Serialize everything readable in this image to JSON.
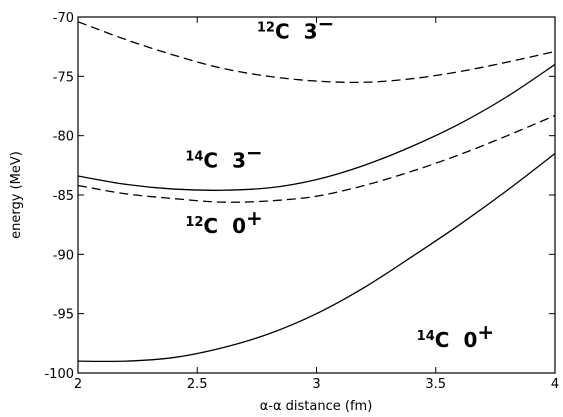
{
  "chart_data": {
    "type": "line",
    "xlabel": "α-α distance (fm)",
    "ylabel": "energy (MeV)",
    "xlim": [
      2,
      4
    ],
    "ylim": [
      -100,
      -70
    ],
    "xticks": [
      2,
      2.5,
      3,
      3.5,
      4
    ],
    "xtick_labels": [
      "2",
      "2.5",
      "3",
      "3.5",
      "4"
    ],
    "yticks": [
      -100,
      -95,
      -90,
      -85,
      -80,
      -75,
      -70
    ],
    "ytick_labels": [
      "-100",
      "-95",
      "-90",
      "-85",
      "-80",
      "-75",
      "-70"
    ],
    "grid": false,
    "series": [
      {
        "name": "12C 3−",
        "style": "dashed",
        "color": "#000000",
        "x": [
          2.0,
          2.2,
          2.4,
          2.6,
          2.8,
          3.0,
          3.2,
          3.4,
          3.6,
          3.8,
          4.0
        ],
        "y": [
          -70.4,
          -71.9,
          -73.2,
          -74.3,
          -75.0,
          -75.4,
          -75.5,
          -75.2,
          -74.6,
          -73.8,
          -72.9
        ]
      },
      {
        "name": "14C 3−",
        "style": "solid",
        "color": "#000000",
        "x": [
          2.0,
          2.2,
          2.4,
          2.6,
          2.8,
          3.0,
          3.2,
          3.4,
          3.6,
          3.8,
          4.0
        ],
        "y": [
          -83.4,
          -84.1,
          -84.5,
          -84.6,
          -84.4,
          -83.7,
          -82.5,
          -80.9,
          -79.0,
          -76.7,
          -74.0
        ]
      },
      {
        "name": "12C 0+",
        "style": "dashed",
        "color": "#000000",
        "x": [
          2.0,
          2.2,
          2.4,
          2.6,
          2.8,
          3.0,
          3.2,
          3.4,
          3.6,
          3.8,
          4.0
        ],
        "y": [
          -84.2,
          -84.9,
          -85.3,
          -85.6,
          -85.5,
          -85.1,
          -84.2,
          -83.0,
          -81.6,
          -80.0,
          -78.3
        ]
      },
      {
        "name": "14C 0+",
        "style": "solid",
        "color": "#000000",
        "x": [
          2.0,
          2.2,
          2.4,
          2.6,
          2.8,
          3.0,
          3.2,
          3.4,
          3.6,
          3.8,
          4.0
        ],
        "y": [
          -99.0,
          -99.0,
          -98.7,
          -97.9,
          -96.7,
          -95.0,
          -92.8,
          -90.2,
          -87.5,
          -84.6,
          -81.5
        ]
      }
    ],
    "annotations": [
      {
        "mass": "12",
        "element": "C",
        "spin": "3",
        "parity": "−",
        "x": 2.75,
        "y": -71.8
      },
      {
        "mass": "14",
        "element": "C",
        "spin": "3",
        "parity": "−",
        "x": 2.45,
        "y": -82.7
      },
      {
        "mass": "12",
        "element": "C",
        "spin": "0",
        "parity": "+",
        "x": 2.45,
        "y": -88.2
      },
      {
        "mass": "14",
        "element": "C",
        "spin": "0",
        "parity": "+",
        "x": 3.42,
        "y": -97.8
      }
    ]
  }
}
